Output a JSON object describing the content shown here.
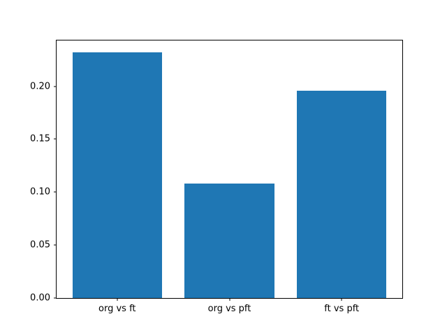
{
  "figure": {
    "background_color": "#ffffff",
    "spine_color": "#000000",
    "tick_color": "#000000",
    "text_color": "#000000"
  },
  "chart_data": {
    "type": "bar",
    "categories": [
      "org vs ft",
      "org vs pft",
      "ft vs pft"
    ],
    "values": [
      0.232,
      0.108,
      0.196
    ],
    "x_positions": [
      0,
      1,
      2
    ],
    "bar_width": 0.8,
    "bar_color": "#1f77b4",
    "title": "",
    "xlabel": "",
    "ylabel": "",
    "xlim": [
      -0.54,
      2.54
    ],
    "ylim": [
      0,
      0.2432
    ],
    "yticks": [
      0.0,
      0.05,
      0.1,
      0.15,
      0.2
    ],
    "ytick_labels": [
      "0.00",
      "0.05",
      "0.10",
      "0.15",
      "0.20"
    ],
    "grid": false,
    "legend": "none"
  }
}
